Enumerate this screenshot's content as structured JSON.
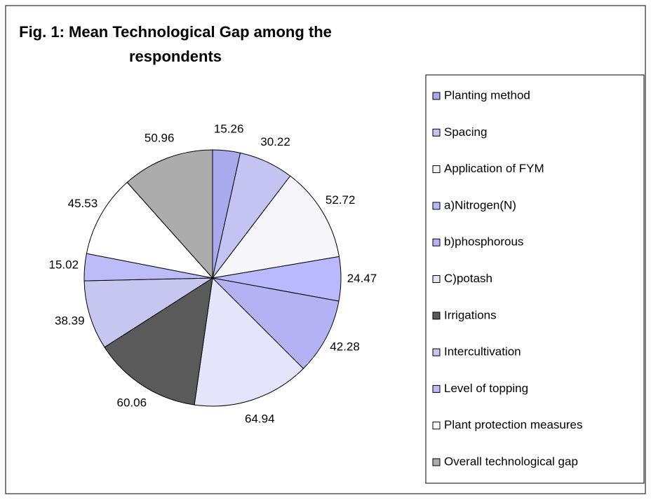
{
  "chart_data": {
    "type": "pie",
    "title": "Fig. 1: Mean Technological Gap among the respondents",
    "categories": [
      "Planting method",
      "Spacing",
      "Application of FYM",
      "a)Nitrogen(N)",
      "b)phosphorous",
      "C)potash",
      "Irrigations",
      "Intercultivation",
      "Level of topping",
      "Plant protection measures",
      "Overall technological gap"
    ],
    "values": [
      15.26,
      30.22,
      52.72,
      24.47,
      42.28,
      64.94,
      60.06,
      38.39,
      15.02,
      45.53,
      50.96
    ],
    "colors": [
      "#a9a9ee",
      "#c4c4f2",
      "#f6f6fb",
      "#b9b9ff",
      "#b3b3f3",
      "#e4e4fa",
      "#5a5a5a",
      "#c6c6f0",
      "#bcbcf8",
      "#ffffff",
      "#acacac"
    ],
    "legend": "right"
  }
}
